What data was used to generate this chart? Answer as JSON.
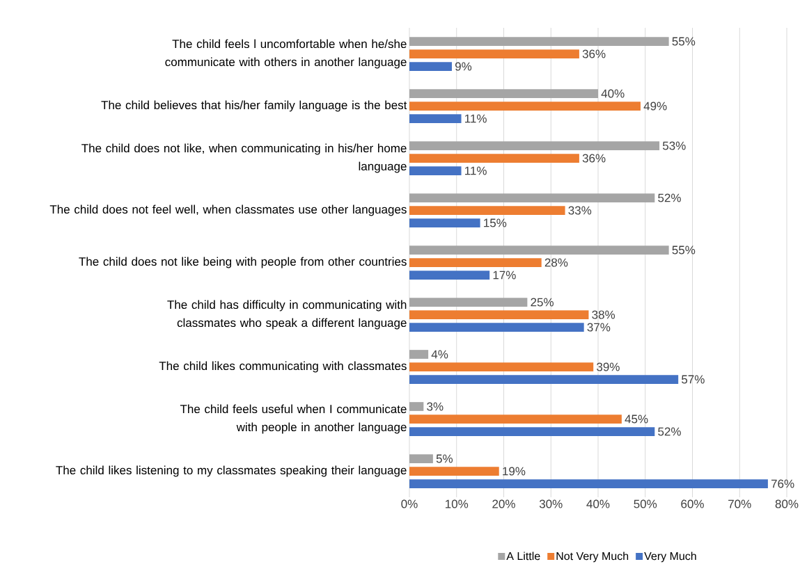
{
  "chart_data": {
    "type": "bar",
    "orientation": "horizontal",
    "categories": [
      "The child feels l uncomfortable when he/she communicate with others in another language",
      "The child believes that his/her family language is the best",
      "The child does not like, when communicating in his/her home language",
      "The child does not feel well, when classmates use other languages",
      "The child does not like being with people from other countries",
      "The child has difficulty in communicating with classmates who speak a different language",
      "The child likes communicating with classmates",
      "The child feels useful when I communicate with people in another language",
      "The child likes listening to my classmates speaking their language"
    ],
    "series": [
      {
        "name": "A Little",
        "color": "#a5a5a5",
        "values": [
          55,
          40,
          53,
          52,
          55,
          25,
          4,
          3,
          5
        ],
        "value_labels": [
          "55%",
          "40%",
          "53%",
          "52%",
          "55%",
          "25%",
          "4%",
          "3%",
          "5%"
        ]
      },
      {
        "name": "Not Very Much",
        "color": "#ed7d31",
        "values": [
          36,
          49,
          36,
          33,
          28,
          38,
          39,
          45,
          19
        ],
        "value_labels": [
          "36%",
          "49%",
          "36%",
          "33%",
          "28%",
          "38%",
          "39%",
          "45%",
          "19%"
        ]
      },
      {
        "name": "Very Much",
        "color": "#4472c4",
        "values": [
          9,
          11,
          11,
          15,
          17,
          37,
          57,
          52,
          76
        ],
        "value_labels": [
          "9%",
          "11%",
          "11%",
          "15%",
          "17%",
          "37%",
          "57%",
          "52%",
          "76%"
        ]
      }
    ],
    "xlim": [
      0,
      80
    ],
    "xticks": [
      {
        "value": 0,
        "label": "0%"
      },
      {
        "value": 10,
        "label": "10%"
      },
      {
        "value": 20,
        "label": "20%"
      },
      {
        "value": 30,
        "label": "30%"
      },
      {
        "value": 40,
        "label": "40%"
      },
      {
        "value": 50,
        "label": "50%"
      },
      {
        "value": 60,
        "label": "60%"
      },
      {
        "value": 70,
        "label": "70%"
      },
      {
        "value": 80,
        "label": "80%"
      }
    ],
    "grid": "x",
    "legend": "bottom"
  }
}
